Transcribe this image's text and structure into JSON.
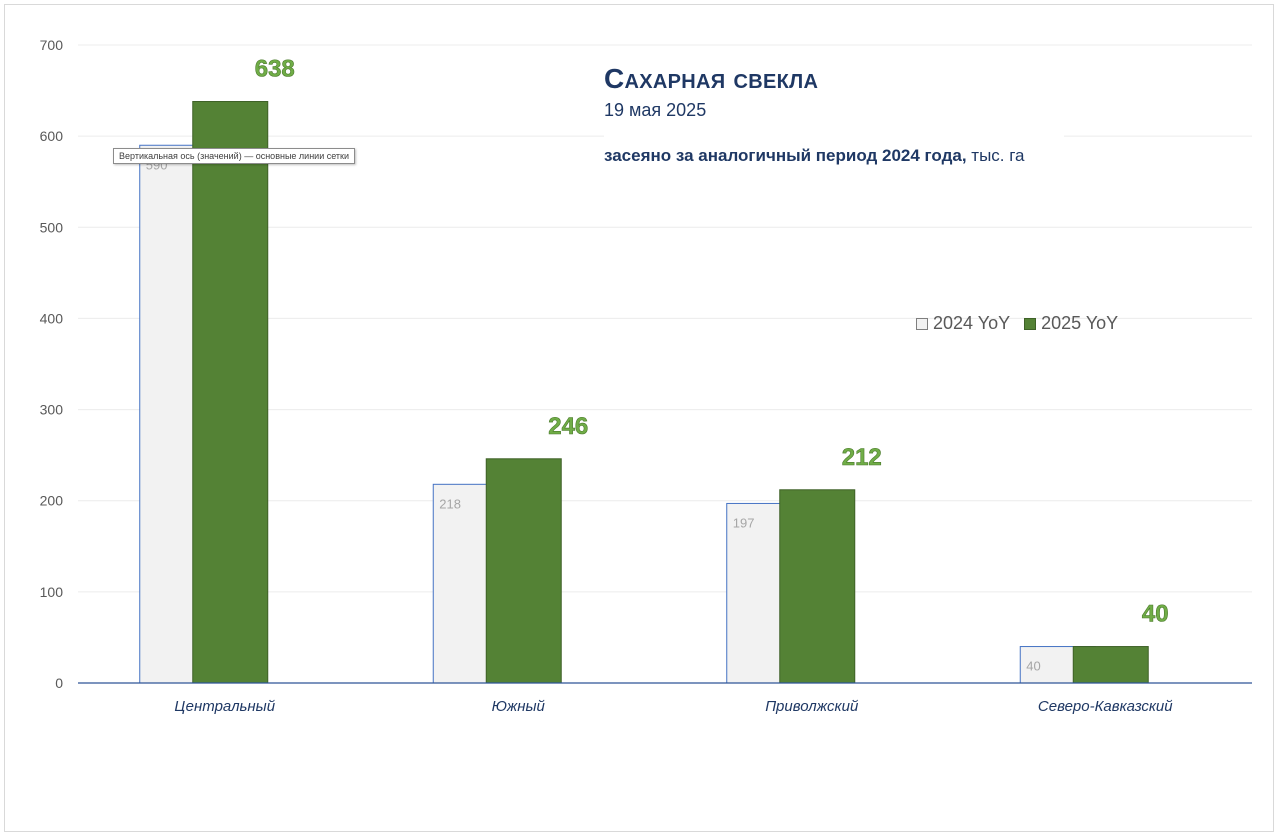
{
  "chart_data": {
    "type": "bar",
    "title": "Сахарная свекла",
    "date": "19 мая 2025",
    "subtitle_bold": "засеяно за аналогичный период 2024 года,",
    "subtitle_unit": "тыс. га",
    "categories": [
      "Центральный",
      "Южный",
      "Приволжский",
      "Северо-Кавказский"
    ],
    "series": [
      {
        "name": "2024 YoY",
        "values": [
          590,
          218,
          197,
          40
        ],
        "color": "#f2f2f2",
        "border": "#4472c4"
      },
      {
        "name": "2025 YoY",
        "values": [
          638,
          246,
          212,
          40
        ],
        "color": "#548235",
        "border": "#3e6127"
      }
    ],
    "ylim": [
      0,
      700
    ],
    "yticks": [
      0,
      100,
      200,
      300,
      400,
      500,
      600,
      700
    ],
    "grid": true,
    "legend_position": "right"
  },
  "tooltip": {
    "text": "Вертикальная ось (значений)  — основные линии сетки"
  }
}
